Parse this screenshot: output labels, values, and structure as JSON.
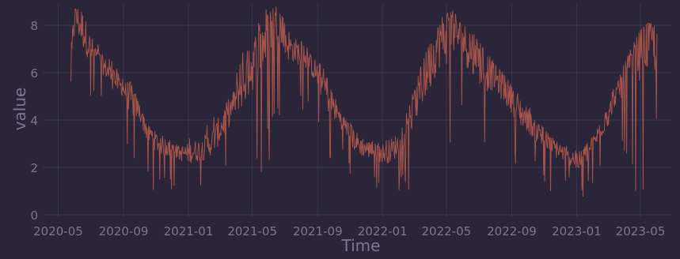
{
  "colors": {
    "background": "#2a2539",
    "grid": "#3b3650",
    "line": "#b0594b",
    "text": "#7d7690"
  },
  "chart_data": {
    "type": "line",
    "title": "",
    "xlabel": "Time",
    "ylabel": "value",
    "ylim": [
      -0.1,
      8.9
    ],
    "xlim": [
      "2020-04-02",
      "2023-06-28"
    ],
    "y_ticks": [
      0,
      2,
      4,
      6,
      8
    ],
    "x_ticks": [
      "2020-05",
      "2020-09",
      "2021-01",
      "2021-05",
      "2021-09",
      "2022-01",
      "2022-05",
      "2022-09",
      "2023-01",
      "2023-05"
    ],
    "grid": true,
    "series": [
      {
        "name": "",
        "description_note": "",
        "start": "2020-05-25",
        "end": "2023-06-01",
        "x": [
          "2020-05-25",
          "2020-06-01",
          "2020-06-15",
          "2020-07-01",
          "2020-07-15",
          "2020-08-01",
          "2020-08-15",
          "2020-09-01",
          "2020-09-15",
          "2020-10-01",
          "2020-10-15",
          "2020-11-01",
          "2020-11-15",
          "2020-12-01",
          "2020-12-15",
          "2021-01-01",
          "2021-01-15",
          "2021-02-01",
          "2021-02-15",
          "2021-03-01",
          "2021-03-15",
          "2021-04-01",
          "2021-04-15",
          "2021-05-01",
          "2021-05-15",
          "2021-06-01",
          "2021-06-15",
          "2021-07-01",
          "2021-07-15",
          "2021-08-01",
          "2021-08-15",
          "2021-09-01",
          "2021-09-15",
          "2021-10-01",
          "2021-10-15",
          "2021-11-01",
          "2021-11-15",
          "2021-12-01",
          "2021-12-15",
          "2022-01-01",
          "2022-01-15",
          "2022-02-01",
          "2022-02-15",
          "2022-03-01",
          "2022-03-15",
          "2022-04-01",
          "2022-04-15",
          "2022-05-01",
          "2022-05-15",
          "2022-06-01",
          "2022-06-15",
          "2022-07-01",
          "2022-07-15",
          "2022-08-01",
          "2022-08-15",
          "2022-09-01",
          "2022-09-15",
          "2022-10-01",
          "2022-10-15",
          "2022-11-01",
          "2022-11-15",
          "2022-12-01",
          "2022-12-15",
          "2023-01-01",
          "2023-01-15",
          "2023-02-01",
          "2023-02-15",
          "2023-03-01",
          "2023-03-15",
          "2023-04-01",
          "2023-04-15",
          "2023-05-01",
          "2023-05-15",
          "2023-06-01"
        ],
        "values": [
          6.0,
          8.5,
          7.9,
          7.0,
          6.6,
          6.1,
          5.7,
          5.3,
          4.9,
          4.4,
          3.6,
          3.1,
          2.9,
          2.8,
          2.6,
          2.6,
          2.7,
          2.8,
          3.1,
          3.6,
          4.2,
          4.9,
          5.6,
          6.3,
          7.0,
          7.8,
          8.2,
          7.4,
          7.0,
          6.8,
          6.5,
          5.9,
          5.3,
          4.6,
          4.0,
          3.4,
          3.0,
          2.8,
          2.7,
          2.6,
          2.7,
          3.0,
          3.8,
          4.5,
          5.4,
          6.4,
          7.2,
          7.6,
          7.8,
          7.4,
          7.0,
          6.5,
          6.1,
          5.8,
          5.4,
          4.9,
          4.4,
          4.0,
          3.6,
          3.2,
          2.9,
          2.7,
          2.5,
          2.2,
          2.4,
          3.0,
          3.6,
          4.2,
          5.0,
          5.7,
          6.3,
          6.9,
          7.3,
          6.9
        ],
        "range_low": [
          3.3,
          4.2,
          3.9,
          4.5,
          5.0,
          4.5,
          3.3,
          4.0,
          1.2,
          2.2,
          0.7,
          1.0,
          0.9,
          1.0,
          1.2,
          0.8,
          0.9,
          1.1,
          1.0,
          1.5,
          1.9,
          3.0,
          1.2,
          1.5,
          1.3,
          1.3,
          4.6,
          3.3,
          4.5,
          4.2,
          4.8,
          3.4,
          1.2,
          2.0,
          2.4,
          1.3,
          1.1,
          1.0,
          1.4,
          0.6,
          0.4,
          1.0,
          0.8,
          1.0,
          1.5,
          1.0,
          2.0,
          1.5,
          3.3,
          4.8,
          1.0,
          1.5,
          1.8,
          3.5,
          2.5,
          2.1,
          1.0,
          2.0,
          1.4,
          1.2,
          0.9,
          0.8,
          1.3,
          0.4,
          0.7,
          1.3,
          1.6,
          1.8,
          3.6,
          2.2,
          1.0,
          1.0,
          0.8,
          3.0
        ],
        "range_high": [
          8.8,
          8.7,
          8.6,
          7.9,
          7.2,
          6.9,
          6.3,
          5.8,
          5.6,
          4.6,
          3.8,
          3.5,
          3.3,
          3.1,
          3.0,
          3.2,
          3.6,
          3.8,
          4.1,
          5.0,
          5.6,
          6.1,
          7.3,
          7.8,
          8.3,
          8.8,
          8.9,
          8.3,
          7.5,
          7.4,
          7.0,
          6.7,
          6.0,
          5.2,
          4.3,
          4.1,
          3.8,
          3.3,
          3.2,
          3.0,
          3.3,
          3.9,
          4.6,
          5.4,
          6.6,
          7.3,
          7.9,
          8.8,
          8.9,
          8.5,
          7.9,
          7.4,
          6.9,
          6.6,
          6.1,
          5.5,
          5.1,
          4.7,
          4.2,
          3.8,
          3.3,
          3.0,
          2.9,
          2.8,
          2.9,
          3.3,
          3.9,
          4.7,
          5.6,
          6.4,
          7.1,
          7.8,
          8.1,
          8.0
        ]
      }
    ]
  }
}
